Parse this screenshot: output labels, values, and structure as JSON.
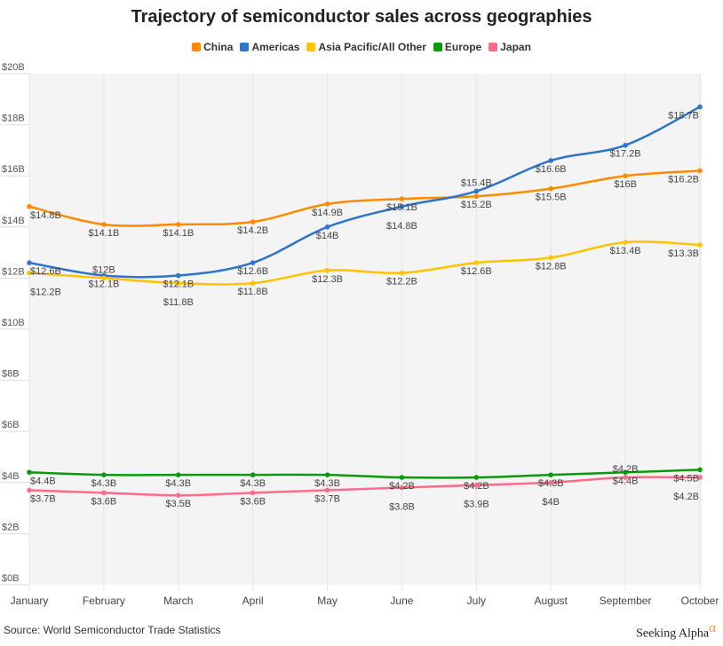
{
  "chart_data": {
    "type": "line",
    "title": "Trajectory of semiconductor sales across geographies",
    "categories": [
      "January",
      "February",
      "March",
      "April",
      "May",
      "June",
      "July",
      "August",
      "September",
      "October"
    ],
    "ylim": [
      0,
      20
    ],
    "yticks": [
      "$0B",
      "$2B",
      "$4B",
      "$6B",
      "$8B",
      "$10B",
      "$12B",
      "$14B",
      "$16B",
      "$18B",
      "$20B"
    ],
    "legend_position": "top",
    "grid": true,
    "series": [
      {
        "name": "China",
        "color": "#ff8a00",
        "values": [
          14.8,
          14.1,
          14.1,
          14.2,
          14.9,
          15.1,
          15.2,
          15.5,
          16,
          16.2
        ]
      },
      {
        "name": "Americas",
        "color": "#2e75c9",
        "values": [
          12.6,
          12.1,
          12.1,
          12.6,
          14,
          14.8,
          15.4,
          16.6,
          17.2,
          18.7
        ]
      },
      {
        "name": "Asia Pacific/All Other",
        "color": "#ffc300",
        "values": [
          12.2,
          12,
          11.8,
          11.8,
          12.3,
          12.2,
          12.6,
          12.8,
          13.4,
          13.3
        ]
      },
      {
        "name": "Europe",
        "color": "#0b9a0b",
        "values": [
          4.4,
          4.3,
          4.3,
          4.3,
          4.3,
          4.2,
          4.2,
          4.3,
          4.4,
          4.5
        ]
      },
      {
        "name": "Japan",
        "color": "#ff6b88",
        "values": [
          3.7,
          3.6,
          3.5,
          3.6,
          3.7,
          3.8,
          3.9,
          4,
          4.2,
          4.2
        ]
      }
    ]
  },
  "source": "Source: World Semiconductor Trade Statistics",
  "brand": {
    "name": "Seeking Alpha",
    "mark": "α"
  }
}
